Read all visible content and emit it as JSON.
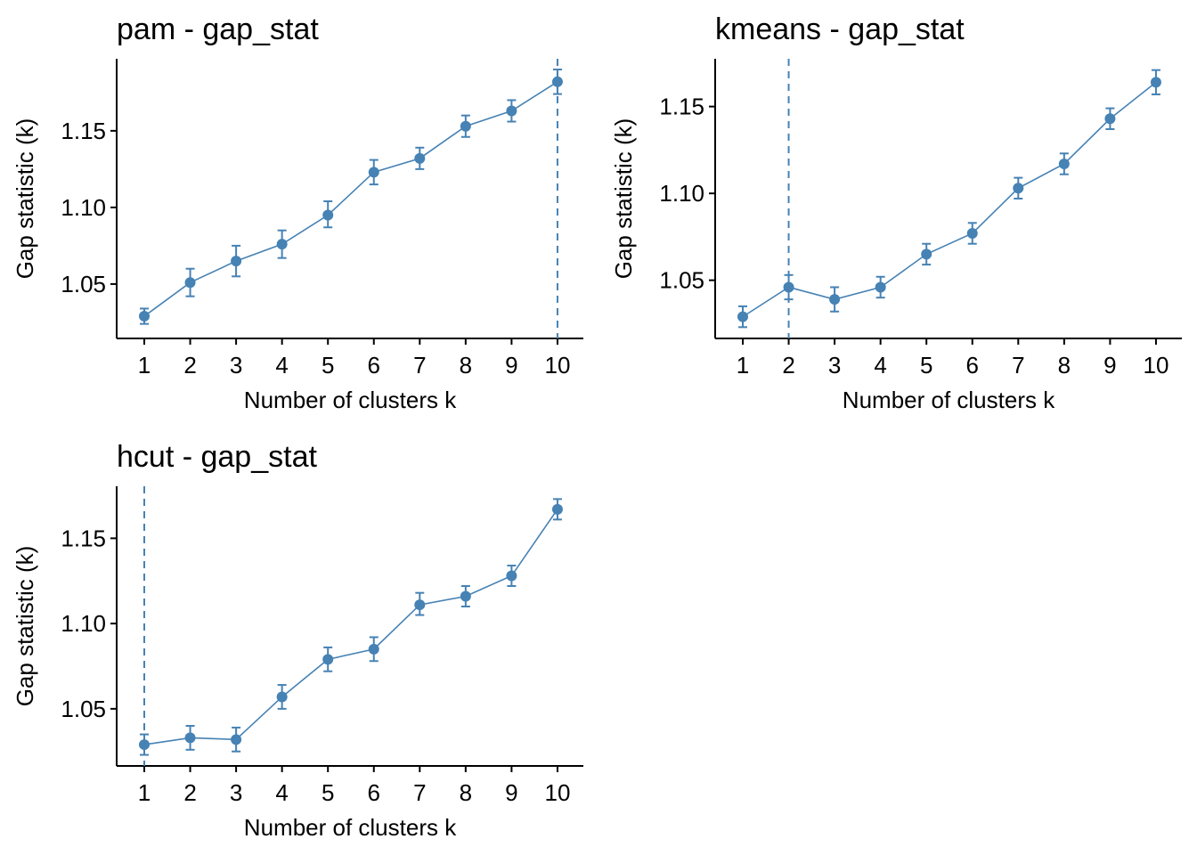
{
  "colors": {
    "series": "#4682B4",
    "axis": "#000000",
    "background": "#FFFFFF"
  },
  "chart_data": [
    {
      "type": "line",
      "title": "pam - gap_stat",
      "xlabel": "Number of clusters k",
      "ylabel": "Gap statistic (k)",
      "x": [
        "1",
        "2",
        "3",
        "4",
        "5",
        "6",
        "7",
        "8",
        "9",
        "10"
      ],
      "y": [
        1.029,
        1.051,
        1.065,
        1.076,
        1.095,
        1.123,
        1.132,
        1.153,
        1.163,
        1.182
      ],
      "ymin": [
        1.024,
        1.042,
        1.055,
        1.067,
        1.087,
        1.115,
        1.125,
        1.146,
        1.156,
        1.174
      ],
      "ymax": [
        1.034,
        1.06,
        1.075,
        1.085,
        1.104,
        1.131,
        1.139,
        1.16,
        1.17,
        1.19
      ],
      "yticks": [
        "1.05",
        "1.10",
        "1.15"
      ],
      "ytick_values": [
        1.05,
        1.1,
        1.15
      ],
      "ylim": [
        1.0145,
        1.197
      ],
      "optimal_k": "10",
      "grid": false
    },
    {
      "type": "line",
      "title": "kmeans - gap_stat",
      "xlabel": "Number of clusters k",
      "ylabel": "Gap statistic (k)",
      "x": [
        "1",
        "2",
        "3",
        "4",
        "5",
        "6",
        "7",
        "8",
        "9",
        "10"
      ],
      "y": [
        1.029,
        1.046,
        1.039,
        1.046,
        1.065,
        1.077,
        1.103,
        1.117,
        1.143,
        1.164
      ],
      "ymin": [
        1.023,
        1.039,
        1.032,
        1.04,
        1.059,
        1.071,
        1.097,
        1.111,
        1.137,
        1.157
      ],
      "ymax": [
        1.035,
        1.053,
        1.046,
        1.052,
        1.071,
        1.083,
        1.109,
        1.123,
        1.149,
        1.171
      ],
      "yticks": [
        "1.05",
        "1.10",
        "1.15"
      ],
      "ytick_values": [
        1.05,
        1.1,
        1.15
      ],
      "ylim": [
        1.0165,
        1.1775
      ],
      "optimal_k": "2",
      "grid": false
    },
    {
      "type": "line",
      "title": "hcut - gap_stat",
      "xlabel": "Number of clusters k",
      "ylabel": "Gap statistic (k)",
      "x": [
        "1",
        "2",
        "3",
        "4",
        "5",
        "6",
        "7",
        "8",
        "9",
        "10"
      ],
      "y": [
        1.029,
        1.033,
        1.032,
        1.057,
        1.079,
        1.085,
        1.111,
        1.116,
        1.128,
        1.167
      ],
      "ymin": [
        1.023,
        1.026,
        1.025,
        1.05,
        1.072,
        1.078,
        1.105,
        1.11,
        1.122,
        1.161
      ],
      "ymax": [
        1.035,
        1.04,
        1.039,
        1.064,
        1.086,
        1.092,
        1.118,
        1.122,
        1.134,
        1.173
      ],
      "yticks": [
        "1.05",
        "1.10",
        "1.15"
      ],
      "ytick_values": [
        1.05,
        1.1,
        1.15
      ],
      "ylim": [
        1.0165,
        1.1805
      ],
      "optimal_k": "1",
      "grid": false
    }
  ]
}
